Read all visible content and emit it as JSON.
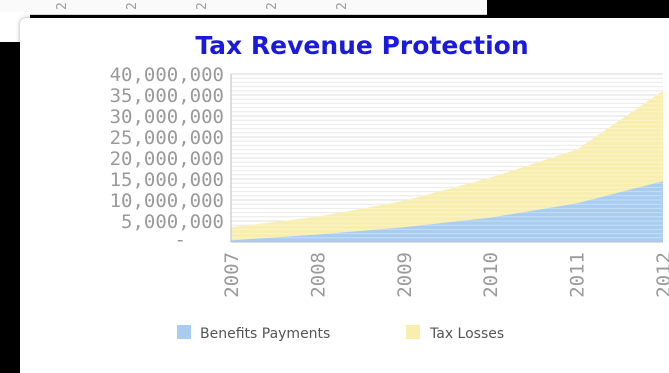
{
  "colors": {
    "benefits": "#a9cdf0",
    "tax_losses": "#f8eeae",
    "title": "#1a1adf",
    "tick": "#9a9a9a"
  },
  "chart_data": {
    "type": "area",
    "stacked": true,
    "title": "Tax Revenue Protection",
    "xlabel": "",
    "ylabel": "",
    "x": [
      "2007",
      "2008",
      "2009",
      "2010",
      "2011",
      "2012"
    ],
    "ylim": [
      0,
      40000000
    ],
    "yticks": [
      0,
      5000000,
      10000000,
      15000000,
      20000000,
      25000000,
      30000000,
      35000000,
      40000000
    ],
    "ytick_labels": [
      "-",
      "5,000,000",
      "10,000,000",
      "15,000,000",
      "20,000,000",
      "25,000,000",
      "30,000,000",
      "35,000,000",
      "40,000,000"
    ],
    "grid": true,
    "legend": "bottom",
    "series": [
      {
        "name": "Benefits Payments",
        "values": [
          400000,
          1800000,
          3500000,
          5800000,
          9200000,
          14500000
        ]
      },
      {
        "name": "Tax Losses",
        "values": [
          3100000,
          4200000,
          6300000,
          9500000,
          12800000,
          21500000
        ]
      }
    ]
  }
}
